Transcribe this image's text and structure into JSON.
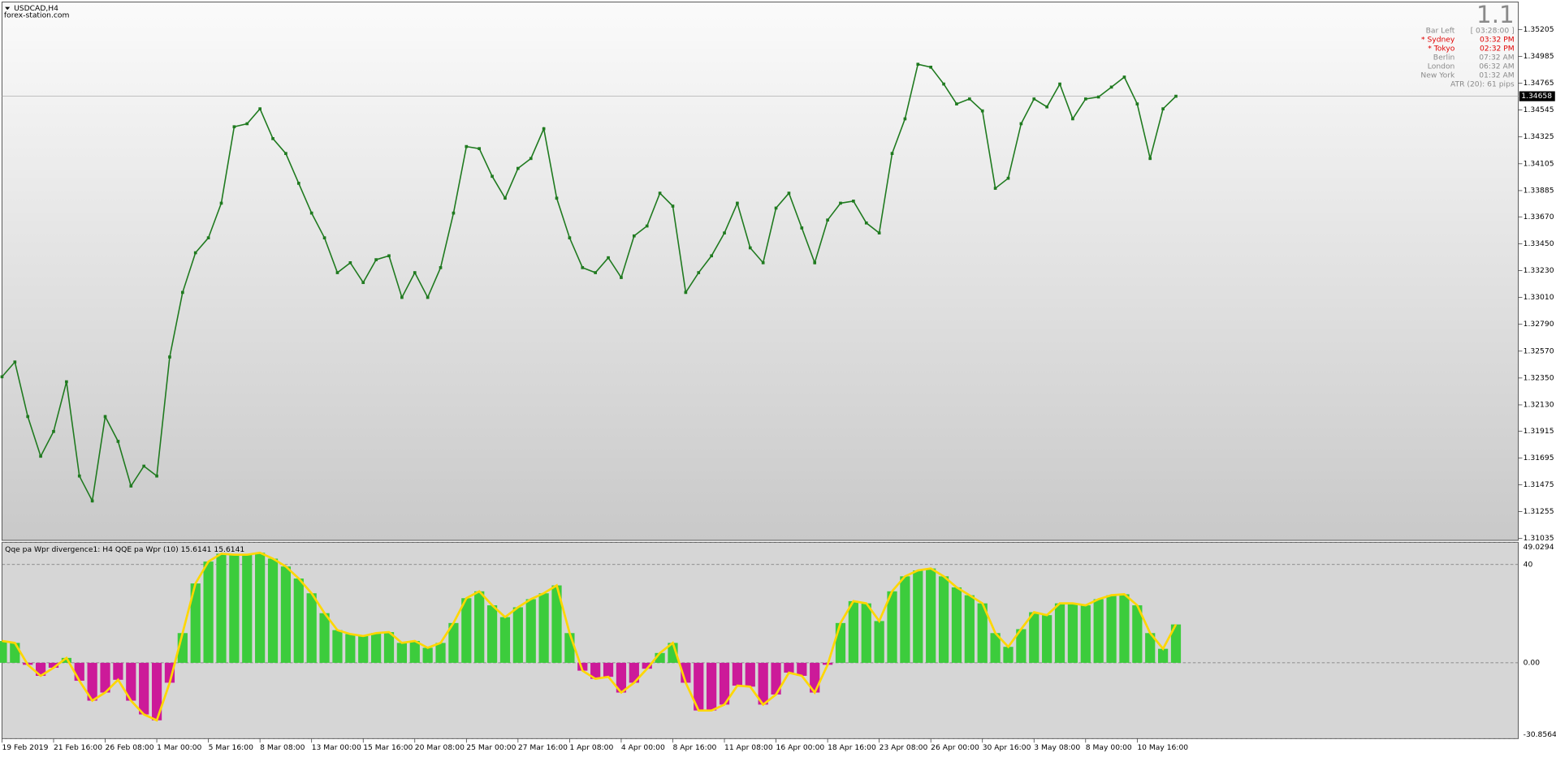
{
  "header": {
    "symbol": "USDCAD,H4",
    "site": "forex-station.com"
  },
  "info": {
    "big": "1.1",
    "rows": [
      [
        "Bar Left",
        "[ 03:28:00 ]"
      ],
      [
        "* Sydney",
        "03:32 PM"
      ],
      [
        "* Tokyo",
        "02:32 PM"
      ],
      [
        "Berlin",
        "07:32 AM"
      ],
      [
        "London",
        "06:32 AM"
      ],
      [
        "New York",
        "01:32 AM"
      ]
    ],
    "atr": "ATR (20): 61 pips"
  },
  "chart_data": [
    {
      "type": "line",
      "color": "#1f7a1f",
      "current_price": 1.34658,
      "ylim": [
        1.3102,
        1.3543
      ],
      "yticks": [
        1.35205,
        1.34985,
        1.34765,
        1.34545,
        1.34325,
        1.34105,
        1.33885,
        {
          "value": 1.3367,
          "label": "1.33670"
        },
        {
          "value": 1.3345,
          "label": "1.33450"
        },
        {
          "value": 1.3323,
          "label": "1.33230"
        },
        {
          "value": 1.3301,
          "label": "1.33010"
        },
        {
          "value": 1.3279,
          "label": "1.32790"
        },
        {
          "value": 1.3257,
          "label": "1.32570"
        },
        {
          "value": 1.3235,
          "label": "1.32350"
        },
        {
          "value": 1.3213,
          "label": "1.32130"
        },
        1.31915,
        1.31695,
        1.31475,
        1.31255,
        1.31035
      ],
      "values": [
        1.3236,
        1.32481,
        1.32034,
        1.31709,
        1.31912,
        1.32319,
        1.31547,
        1.31343,
        1.32034,
        1.31831,
        1.31465,
        1.31628,
        1.31547,
        1.32522,
        1.33051,
        1.33376,
        1.33498,
        1.33782,
        1.34408,
        1.34433,
        1.34555,
        1.34311,
        1.34189,
        1.33945,
        1.33701,
        1.33498,
        1.33213,
        1.33294,
        1.33132,
        1.33319,
        1.33351,
        1.3301,
        1.33213,
        1.3301,
        1.33254,
        1.33701,
        1.34246,
        1.34229,
        1.34002,
        1.33823,
        1.34067,
        1.34148,
        1.34392,
        1.33823,
        1.33498,
        1.33254,
        1.33213,
        1.33335,
        1.33173,
        1.33514,
        1.33595,
        1.33864,
        1.33758,
        1.33051,
        1.33213,
        1.33351,
        1.33538,
        1.33782,
        1.33416,
        1.33294,
        1.33742,
        1.33864,
        1.33579,
        1.33294,
        1.33644,
        1.33782,
        1.33799,
        1.3362,
        1.33538,
        1.34189,
        1.34473,
        1.3492,
        1.34896,
        1.34758,
        1.34595,
        1.34636,
        1.34538,
        1.33904,
        1.33986,
        1.34433,
        1.34636,
        1.34571,
        1.34758,
        1.34473,
        1.34636,
        1.34652,
        1.34733,
        1.34815,
        1.34595,
        1.34148,
        1.34555,
        1.34658
      ]
    },
    {
      "type": "bar",
      "title": "Qqe pa Wpr divergence1: H4  QQE pa Wpr (10) 15.6141 15.6141",
      "color": "#3ccc3c",
      "negative_color": "#cc1a99",
      "line_color": "#ffd700",
      "ylim": [
        -30.8564,
        49.0294
      ],
      "yticks": [
        49.0294,
        40,
        {
          "value": 0,
          "label": "0.00"
        },
        -30.8564
      ],
      "categories": [
        "19 Feb 2019",
        null,
        null,
        null,
        "21 Feb 16:00",
        null,
        null,
        null,
        "26 Feb 08:00",
        null,
        null,
        null,
        "1 Mar 00:00",
        null,
        null,
        null,
        "5 Mar 16:00",
        null,
        null,
        null,
        "8 Mar 08:00",
        null,
        null,
        null,
        "13 Mar 00:00",
        null,
        null,
        null,
        "15 Mar 16:00",
        null,
        null,
        null,
        "20 Mar 08:00",
        null,
        null,
        null,
        "25 Mar 00:00",
        null,
        null,
        null,
        "27 Mar 16:00",
        null,
        null,
        null,
        "1 Apr 08:00",
        null,
        null,
        null,
        "4 Apr 00:00",
        null,
        null,
        null,
        "8 Apr 16:00",
        null,
        null,
        null,
        "11 Apr 08:00",
        null,
        null,
        null,
        "16 Apr 00:00",
        null,
        null,
        null,
        "18 Apr 16:00",
        null,
        null,
        null,
        "23 Apr 08:00",
        null,
        null,
        null,
        "26 Apr 00:00",
        null,
        null,
        null,
        "30 Apr 16:00",
        null,
        null,
        null,
        "3 May 08:00",
        null,
        null,
        null,
        "8 May 00:00",
        null,
        null,
        null,
        "10 May 16:00",
        null,
        null,
        null
      ],
      "values": [
        8.9,
        8.1,
        -0.8,
        -5.3,
        -2.0,
        2.0,
        -7.3,
        -15.4,
        -12.1,
        -6.9,
        -15.4,
        -21.0,
        -23.4,
        -8.1,
        12.1,
        32.3,
        41.2,
        44.4,
        44.0,
        44.0,
        44.8,
        42.4,
        39.2,
        34.3,
        28.3,
        20.2,
        13.3,
        11.7,
        10.9,
        12.1,
        12.5,
        8.1,
        8.9,
        6.1,
        8.1,
        16.2,
        26.3,
        29.1,
        23.4,
        18.6,
        22.6,
        25.9,
        28.3,
        31.5,
        12.1,
        -3.2,
        -6.5,
        -5.7,
        -12.1,
        -8.1,
        -2.4,
        4.0,
        8.1,
        -8.1,
        -19.4,
        -19.4,
        -17.0,
        -9.3,
        -9.7,
        -17.0,
        -12.9,
        -4.0,
        -5.3,
        -12.1,
        -0.8,
        16.2,
        25.1,
        24.2,
        17.0,
        29.1,
        35.2,
        37.6,
        38.4,
        35.2,
        30.7,
        27.5,
        24.2,
        12.1,
        6.5,
        13.7,
        20.6,
        19.4,
        24.2,
        24.2,
        23.4,
        25.9,
        27.5,
        27.9,
        23.4,
        12.1,
        5.7,
        15.6141
      ]
    }
  ]
}
